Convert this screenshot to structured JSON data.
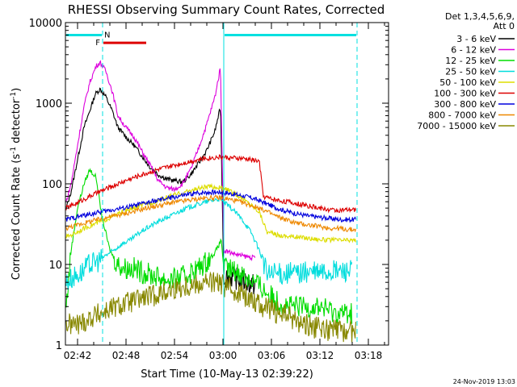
{
  "chart_data": {
    "type": "line",
    "title": "RHESSI Observing Summary Count Rates, Corrected",
    "xlabel": "Start Time (10-May-13 02:39:22)",
    "ylabel": "Corrected Count Rate (s",
    "ylabel_sup1": "-1",
    "ylabel_mid": " detector",
    "ylabel_sup2": "-1",
    "ylabel_end": ")",
    "yscale": "log",
    "ylim": [
      1,
      10000
    ],
    "xlim_minutes": [
      40.5,
      80.5
    ],
    "x_ticks": [
      {
        "t": 42,
        "label": "02:42"
      },
      {
        "t": 48,
        "label": "02:48"
      },
      {
        "t": 54,
        "label": "02:54"
      },
      {
        "t": 60,
        "label": "03:00"
      },
      {
        "t": 66,
        "label": "03:06"
      },
      {
        "t": 72,
        "label": "03:12"
      },
      {
        "t": 78,
        "label": "03:18"
      }
    ],
    "y_ticks": [
      {
        "v": 1,
        "label": "1"
      },
      {
        "v": 10,
        "label": "10"
      },
      {
        "v": 100,
        "label": "100"
      },
      {
        "v": 1000,
        "label": "1000"
      },
      {
        "v": 10000,
        "label": "10000"
      }
    ],
    "legend_header": [
      "Det 1,3,4,5,6,9,",
      "Att 0"
    ],
    "legend_position": "right",
    "footer_date": "24-Nov-2019 13:03",
    "flag_labels": {
      "flare": "F",
      "night": "N"
    },
    "bars": [
      {
        "kind": "N",
        "color": "#00e0e0",
        "t0": 40.6,
        "t1": 45.0,
        "y": 7000
      },
      {
        "kind": "F",
        "color": "#dd0000",
        "t0": 45.2,
        "t1": 50.5,
        "y": 5600
      },
      {
        "kind": "N",
        "color": "#00e0e0",
        "t0": 60.2,
        "t1": 76.5,
        "y": 7000
      }
    ],
    "vlines": [
      {
        "t": 45.1,
        "color": "#00e0e0",
        "style": "dashed"
      },
      {
        "t": 60.1,
        "color": "#00e0e0",
        "style": "solid"
      },
      {
        "t": 76.6,
        "color": "#00e0e0",
        "style": "dashed"
      }
    ],
    "series": [
      {
        "name": "3 - 6 keV",
        "color": "#000000",
        "points": [
          [
            40.6,
            50
          ],
          [
            41.2,
            80
          ],
          [
            42,
            200
          ],
          [
            42.8,
            500
          ],
          [
            43.5,
            800
          ],
          [
            44.2,
            1300
          ],
          [
            44.8,
            1500
          ],
          [
            45.5,
            1200
          ],
          [
            46.3,
            800
          ],
          [
            47,
            500
          ],
          [
            48,
            380
          ],
          [
            49,
            300
          ],
          [
            50,
            220
          ],
          [
            51,
            160
          ],
          [
            52,
            130
          ],
          [
            53,
            115
          ],
          [
            54,
            110
          ],
          [
            55,
            105
          ],
          [
            56,
            130
          ],
          [
            57,
            180
          ],
          [
            58,
            260
          ],
          [
            59,
            450
          ],
          [
            59.7,
            900
          ],
          [
            60.1,
            7
          ],
          [
            61,
            7
          ],
          [
            62,
            6.5
          ],
          [
            63,
            6
          ],
          [
            64,
            5.5
          ]
        ]
      },
      {
        "name": "6 - 12 keV",
        "color": "#dd00dd",
        "points": [
          [
            40.6,
            60
          ],
          [
            41.2,
            100
          ],
          [
            42,
            300
          ],
          [
            42.8,
            900
          ],
          [
            43.5,
            1800
          ],
          [
            44.3,
            2900
          ],
          [
            44.8,
            3200
          ],
          [
            45.5,
            2500
          ],
          [
            46.3,
            1400
          ],
          [
            47,
            700
          ],
          [
            48,
            500
          ],
          [
            49,
            380
          ],
          [
            50,
            250
          ],
          [
            51,
            170
          ],
          [
            52,
            110
          ],
          [
            53,
            90
          ],
          [
            54,
            85
          ],
          [
            55,
            100
          ],
          [
            56,
            150
          ],
          [
            57,
            280
          ],
          [
            58,
            550
          ],
          [
            59,
            1200
          ],
          [
            59.7,
            2800
          ],
          [
            60.1,
            15
          ],
          [
            61,
            14
          ],
          [
            62,
            13
          ],
          [
            63,
            12.5
          ],
          [
            64,
            12
          ]
        ]
      },
      {
        "name": "12 - 25 keV",
        "color": "#00dd00",
        "points": [
          [
            40.6,
            3
          ],
          [
            41.2,
            15
          ],
          [
            42,
            50
          ],
          [
            42.8,
            100
          ],
          [
            43.5,
            150
          ],
          [
            44.3,
            120
          ],
          [
            45,
            40
          ],
          [
            46,
            15
          ],
          [
            47,
            10
          ],
          [
            48,
            9
          ],
          [
            49,
            9
          ],
          [
            50,
            8
          ],
          [
            51,
            7.5
          ],
          [
            52,
            7
          ],
          [
            53,
            6.5
          ],
          [
            54,
            6.5
          ],
          [
            55,
            7
          ],
          [
            56,
            8
          ],
          [
            57,
            9
          ],
          [
            58,
            11
          ],
          [
            59,
            14
          ],
          [
            59.8,
            20
          ],
          [
            60.1,
            9
          ],
          [
            62,
            8
          ],
          [
            64,
            6
          ],
          [
            66,
            4
          ],
          [
            68,
            3
          ],
          [
            70,
            3
          ],
          [
            72,
            3
          ],
          [
            74,
            2.5
          ],
          [
            76,
            2.5
          ]
        ]
      },
      {
        "name": "25 - 50 keV",
        "color": "#00dddd",
        "points": [
          [
            40.6,
            6
          ],
          [
            41.5,
            7
          ],
          [
            42.5,
            8
          ],
          [
            43.5,
            10
          ],
          [
            44.5,
            11
          ],
          [
            45.5,
            13
          ],
          [
            46.5,
            15
          ],
          [
            47.5,
            18
          ],
          [
            48.5,
            20
          ],
          [
            49.5,
            24
          ],
          [
            50.5,
            28
          ],
          [
            51.5,
            32
          ],
          [
            52.5,
            36
          ],
          [
            53.5,
            40
          ],
          [
            54.5,
            45
          ],
          [
            55.5,
            50
          ],
          [
            56.5,
            54
          ],
          [
            57.5,
            58
          ],
          [
            58.5,
            62
          ],
          [
            59.5,
            65
          ],
          [
            60.5,
            55
          ],
          [
            61.5,
            45
          ],
          [
            62.5,
            35
          ],
          [
            63.5,
            25
          ],
          [
            64.5,
            15
          ],
          [
            65.5,
            7.5
          ],
          [
            68,
            7.8
          ],
          [
            70,
            8
          ],
          [
            72,
            8
          ],
          [
            74,
            8.3
          ],
          [
            76,
            8.5
          ]
        ]
      },
      {
        "name": "50 - 100 keV",
        "color": "#dddd00",
        "points": [
          [
            40.6,
            22
          ],
          [
            41.5,
            24
          ],
          [
            42.5,
            27
          ],
          [
            43.5,
            30
          ],
          [
            44.5,
            33
          ],
          [
            45.5,
            36
          ],
          [
            46.5,
            40
          ],
          [
            47.5,
            44
          ],
          [
            48.5,
            48
          ],
          [
            49.5,
            52
          ],
          [
            50.5,
            56
          ],
          [
            51.5,
            60
          ],
          [
            52.5,
            65
          ],
          [
            53.5,
            70
          ],
          [
            54.5,
            75
          ],
          [
            55.5,
            80
          ],
          [
            56.5,
            85
          ],
          [
            57.5,
            90
          ],
          [
            58.5,
            92
          ],
          [
            59.5,
            90
          ],
          [
            60.5,
            85
          ],
          [
            61.5,
            75
          ],
          [
            62.5,
            65
          ],
          [
            63.5,
            55
          ],
          [
            64.5,
            45
          ],
          [
            65.5,
            25
          ],
          [
            67,
            23
          ],
          [
            69,
            22
          ],
          [
            71,
            21
          ],
          [
            73,
            20
          ],
          [
            75,
            20
          ],
          [
            76.5,
            20
          ]
        ]
      },
      {
        "name": "100 - 300 keV",
        "color": "#dd0000",
        "points": [
          [
            40.6,
            50
          ],
          [
            41.5,
            55
          ],
          [
            42.5,
            62
          ],
          [
            43.5,
            70
          ],
          [
            44.5,
            78
          ],
          [
            45.5,
            86
          ],
          [
            46.5,
            95
          ],
          [
            47.5,
            105
          ],
          [
            48.5,
            115
          ],
          [
            49.5,
            125
          ],
          [
            50.5,
            135
          ],
          [
            51.5,
            145
          ],
          [
            52.5,
            155
          ],
          [
            53.5,
            165
          ],
          [
            54.5,
            175
          ],
          [
            55.5,
            185
          ],
          [
            56.5,
            195
          ],
          [
            57.5,
            205
          ],
          [
            58.5,
            210
          ],
          [
            59.5,
            215
          ],
          [
            60.5,
            212
          ],
          [
            61.5,
            208
          ],
          [
            62.5,
            205
          ],
          [
            63.5,
            200
          ],
          [
            64.5,
            190
          ],
          [
            65,
            70
          ],
          [
            66,
            65
          ],
          [
            67,
            62
          ],
          [
            68,
            60
          ],
          [
            69,
            57
          ],
          [
            70,
            55
          ],
          [
            71,
            52
          ],
          [
            72,
            50
          ],
          [
            73,
            48
          ],
          [
            74,
            47
          ],
          [
            75,
            47
          ],
          [
            76.5,
            48
          ]
        ]
      },
      {
        "name": "300 - 800 keV",
        "color": "#0000dd",
        "points": [
          [
            40.6,
            36
          ],
          [
            41.5,
            38
          ],
          [
            42.5,
            40
          ],
          [
            43.5,
            42
          ],
          [
            44.5,
            44
          ],
          [
            45.5,
            46
          ],
          [
            46.5,
            48
          ],
          [
            47.5,
            50
          ],
          [
            48.5,
            52
          ],
          [
            49.5,
            55
          ],
          [
            50.5,
            58
          ],
          [
            51.5,
            61
          ],
          [
            52.5,
            64
          ],
          [
            53.5,
            67
          ],
          [
            54.5,
            70
          ],
          [
            55.5,
            73
          ],
          [
            56.5,
            76
          ],
          [
            57.5,
            78
          ],
          [
            58.5,
            79
          ],
          [
            59.5,
            79
          ],
          [
            60.5,
            77
          ],
          [
            61.5,
            74
          ],
          [
            62.5,
            71
          ],
          [
            63.5,
            67
          ],
          [
            64.5,
            62
          ],
          [
            65.5,
            56
          ],
          [
            66.5,
            51
          ],
          [
            67.5,
            47
          ],
          [
            68.5,
            44
          ],
          [
            69.5,
            42
          ],
          [
            70.5,
            40
          ],
          [
            71.5,
            39
          ],
          [
            72.5,
            38
          ],
          [
            73.5,
            37
          ],
          [
            74.5,
            36
          ],
          [
            75.5,
            36
          ],
          [
            76.5,
            36
          ]
        ]
      },
      {
        "name": "800 - 7000 keV",
        "color": "#ee8800",
        "points": [
          [
            40.6,
            28
          ],
          [
            41.5,
            30
          ],
          [
            42.5,
            32
          ],
          [
            43.5,
            34
          ],
          [
            44.5,
            36
          ],
          [
            45.5,
            38
          ],
          [
            46.5,
            40
          ],
          [
            47.5,
            42
          ],
          [
            48.5,
            44
          ],
          [
            49.5,
            47
          ],
          [
            50.5,
            50
          ],
          [
            51.5,
            52
          ],
          [
            52.5,
            55
          ],
          [
            53.5,
            58
          ],
          [
            54.5,
            60
          ],
          [
            55.5,
            62
          ],
          [
            56.5,
            64
          ],
          [
            57.5,
            66
          ],
          [
            58.5,
            67
          ],
          [
            59.5,
            67
          ],
          [
            60.5,
            65
          ],
          [
            61.5,
            62
          ],
          [
            62.5,
            58
          ],
          [
            63.5,
            54
          ],
          [
            64.5,
            50
          ],
          [
            65.5,
            45
          ],
          [
            66.5,
            40
          ],
          [
            67.5,
            37
          ],
          [
            68.5,
            34
          ],
          [
            69.5,
            32
          ],
          [
            70.5,
            31
          ],
          [
            71.5,
            30
          ],
          [
            72.5,
            29
          ],
          [
            73.5,
            28
          ],
          [
            74.5,
            28
          ],
          [
            75.5,
            27
          ],
          [
            76.5,
            27
          ]
        ]
      },
      {
        "name": "7000 - 15000 keV",
        "color": "#888800",
        "points": [
          [
            40.6,
            1.8
          ],
          [
            42,
            1.8
          ],
          [
            43,
            2
          ],
          [
            44,
            2.3
          ],
          [
            45,
            2.5
          ],
          [
            46,
            2.8
          ],
          [
            47,
            3
          ],
          [
            48,
            3.3
          ],
          [
            49,
            3.5
          ],
          [
            50,
            3.8
          ],
          [
            51,
            4
          ],
          [
            52,
            4.3
          ],
          [
            53,
            4.6
          ],
          [
            54,
            5
          ],
          [
            55,
            5.3
          ],
          [
            56,
            5.5
          ],
          [
            57,
            5.8
          ],
          [
            58,
            6
          ],
          [
            59,
            6
          ],
          [
            60,
            5.5
          ],
          [
            61,
            5
          ],
          [
            62,
            4.5
          ],
          [
            63,
            4
          ],
          [
            64,
            3.5
          ],
          [
            65,
            3
          ],
          [
            66,
            2.7
          ],
          [
            67,
            2.5
          ],
          [
            68,
            2.3
          ],
          [
            69,
            2
          ],
          [
            70,
            1.8
          ],
          [
            72,
            1.6
          ],
          [
            74,
            1.5
          ],
          [
            76.5,
            1.5
          ]
        ]
      }
    ]
  }
}
